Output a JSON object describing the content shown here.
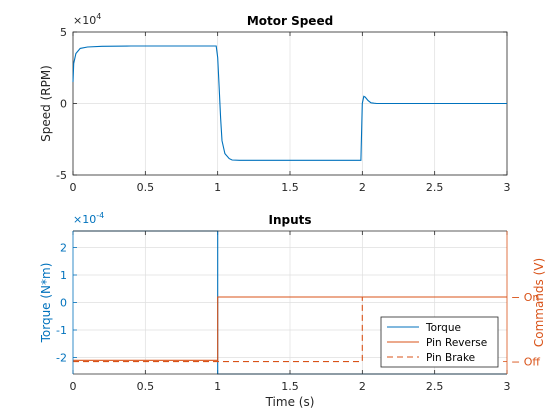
{
  "colors": {
    "torque": "#0072BD",
    "command": "#D95319",
    "grid": "#dfdfdf",
    "axis": "#262626"
  },
  "chart_data": [
    {
      "type": "line",
      "title": "Motor Speed",
      "ylabel": "Speed (RPM)",
      "xlabel": "",
      "exponent_label": "×10",
      "exponent_power": "4",
      "xlim": [
        0,
        3
      ],
      "ylim": [
        -5,
        5
      ],
      "x_ticks": [
        "0",
        "0.5",
        "1",
        "1.5",
        "2",
        "2.5",
        "3"
      ],
      "y_ticks": [
        "-5",
        "0",
        "5"
      ],
      "grid": true,
      "series": [
        {
          "x": [
            0,
            0.005,
            0.02,
            0.05,
            0.1,
            0.2,
            0.4,
            0.7,
            0.99,
            1.0,
            1.01,
            1.02,
            1.03,
            1.05,
            1.08,
            1.1,
            1.15,
            1.3,
            1.6,
            1.99,
            2.0,
            2.01,
            2.02,
            2.04,
            2.06,
            2.08,
            2.1,
            2.2,
            2.5,
            3.0
          ],
          "y": [
            1.5,
            2.8,
            3.5,
            3.85,
            3.95,
            4.0,
            4.02,
            4.02,
            4.02,
            3.2,
            1.2,
            -1.0,
            -2.6,
            -3.5,
            -3.85,
            -3.95,
            -3.97,
            -3.97,
            -3.97,
            -3.97,
            0.0,
            0.5,
            0.45,
            0.2,
            0.05,
            0.02,
            0.0,
            0.0,
            0.0,
            0.0
          ]
        }
      ]
    },
    {
      "type": "line",
      "title": "Inputs",
      "ylabel": "Torque (N*m)",
      "ylabel_right": "Commands (V)",
      "xlabel": "Time (s)",
      "exponent_label": "×10",
      "exponent_power": "-4",
      "xlim": [
        0,
        3
      ],
      "ylim": [
        -2.6,
        2.6
      ],
      "x_ticks": [
        "0",
        "0.5",
        "1",
        "1.5",
        "2",
        "2.5",
        "3"
      ],
      "y_ticks": [
        "-2",
        "-1",
        "0",
        "1",
        "2"
      ],
      "right_ticks": [
        "Off",
        "On"
      ],
      "grid": true,
      "legend": {
        "position": "bottom-right",
        "entries": [
          "Torque",
          "Pin Reverse",
          "Pin Brake"
        ]
      },
      "series": [
        {
          "name": "Torque",
          "x": [
            0,
            1,
            1,
            3
          ],
          "y": [
            2.6,
            2.6,
            -2.6,
            -2.6
          ]
        },
        {
          "name": "Pin Reverse",
          "x": [
            0,
            1,
            1,
            3
          ],
          "y": [
            -2.1,
            -2.1,
            0.2,
            0.2
          ]
        },
        {
          "name": "Pin Brake",
          "x": [
            0,
            2,
            2,
            3
          ],
          "y": [
            -2.15,
            -2.15,
            0.2,
            0.2
          ]
        }
      ]
    }
  ]
}
